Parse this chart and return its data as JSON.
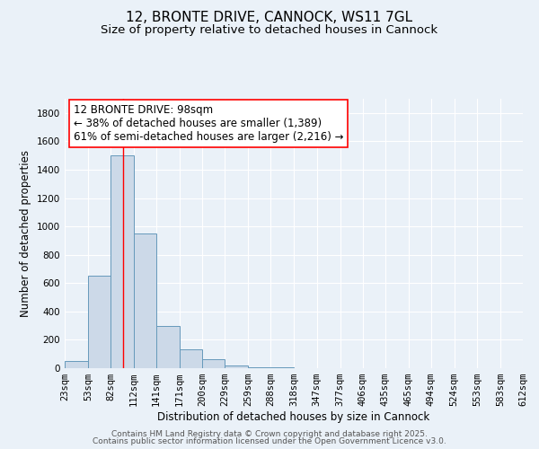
{
  "title": "12, BRONTE DRIVE, CANNOCK, WS11 7GL",
  "subtitle": "Size of property relative to detached houses in Cannock",
  "xlabel": "Distribution of detached houses by size in Cannock",
  "ylabel": "Number of detached properties",
  "bin_edges": [
    23,
    53,
    82,
    112,
    141,
    171,
    200,
    229,
    259,
    288,
    318,
    347,
    377,
    406,
    435,
    465,
    494,
    524,
    553,
    583,
    612
  ],
  "bar_heights": [
    50,
    650,
    1500,
    950,
    300,
    130,
    65,
    20,
    5,
    5,
    0,
    0,
    0,
    0,
    0,
    0,
    0,
    0,
    0,
    0
  ],
  "bar_color": "#ccd9e8",
  "bar_edge_color": "#6699bb",
  "red_line_x": 98,
  "ylim": [
    0,
    1900
  ],
  "yticks": [
    0,
    200,
    400,
    600,
    800,
    1000,
    1200,
    1400,
    1600,
    1800
  ],
  "annotation_line1": "12 BRONTE DRIVE: 98sqm",
  "annotation_line2": "← 38% of detached houses are smaller (1,389)",
  "annotation_line3": "61% of semi-detached houses are larger (2,216) →",
  "bg_color": "#eaf1f8",
  "plot_bg_color": "#eaf1f8",
  "grid_color": "#ffffff",
  "footer_line1": "Contains HM Land Registry data © Crown copyright and database right 2025.",
  "footer_line2": "Contains public sector information licensed under the Open Government Licence v3.0.",
  "title_fontsize": 11,
  "subtitle_fontsize": 9.5,
  "annotation_fontsize": 8.5,
  "axis_label_fontsize": 8.5,
  "tick_fontsize": 7.5,
  "footer_fontsize": 6.5
}
